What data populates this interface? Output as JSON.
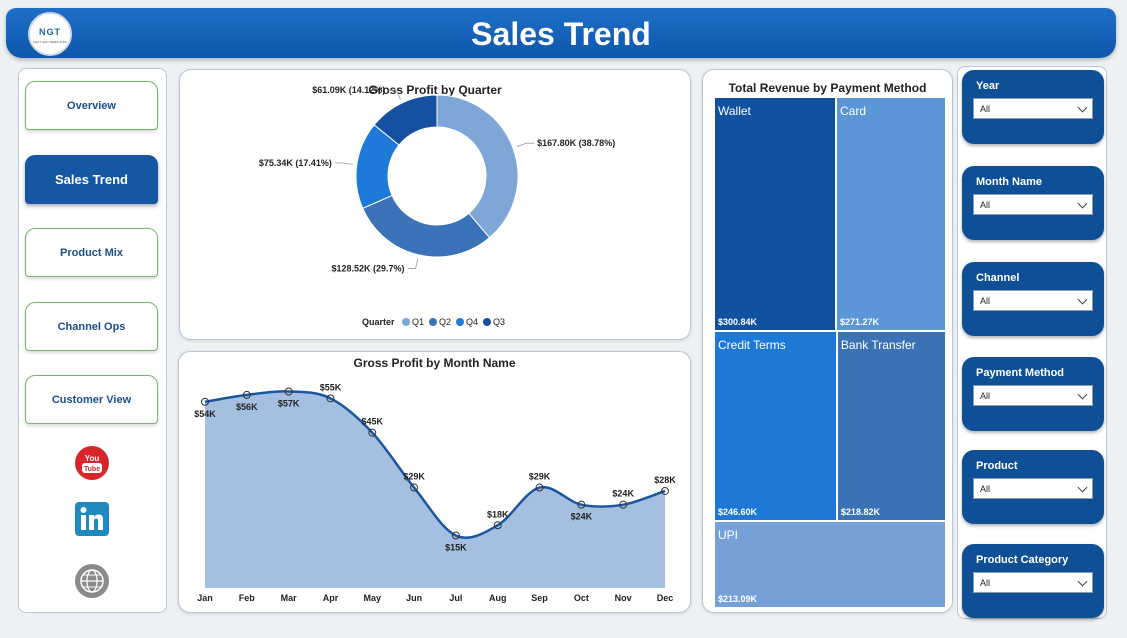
{
  "header": {
    "title": "Sales Trend",
    "logo_text": "NGT",
    "logo_sub": "NEXT GEN TEMPLATES"
  },
  "nav": {
    "items": [
      {
        "label": "Overview",
        "active": false
      },
      {
        "label": "Sales Trend",
        "active": true
      },
      {
        "label": "Product Mix",
        "active": false
      },
      {
        "label": "Channel Ops",
        "active": false
      },
      {
        "label": "Customer View",
        "active": false
      }
    ],
    "social": [
      "youtube-icon",
      "linkedin-icon",
      "globe-icon"
    ]
  },
  "colors": {
    "accent": "#1657a4",
    "q1": "#7ea6d6",
    "q2": "#3a73b7",
    "q3": "#1650a0",
    "q4": "#1e7ad8"
  },
  "donut": {
    "title": "Gross Profit by Quarter",
    "legend_title": "Quarter",
    "legend": [
      "Q1",
      "Q2",
      "Q4",
      "Q3"
    ]
  },
  "area": {
    "title": "Gross Profit by Month Name"
  },
  "treemap": {
    "title": "Total Revenue by Payment Method"
  },
  "filters": [
    {
      "label": "Year",
      "value": "All"
    },
    {
      "label": "Month Name",
      "value": "All"
    },
    {
      "label": "Channel",
      "value": "All"
    },
    {
      "label": "Payment Method",
      "value": "All"
    },
    {
      "label": "Product",
      "value": "All"
    },
    {
      "label": "Product Category",
      "value": "All"
    }
  ],
  "chart_data": [
    {
      "type": "pie",
      "title": "Gross Profit by Quarter",
      "legend_title": "Quarter",
      "slices": [
        {
          "name": "Q1",
          "value": 167.8,
          "label": "$167.80K (38.78%)"
        },
        {
          "name": "Q2",
          "value": 128.52,
          "label": "$128.52K (29.7%)"
        },
        {
          "name": "Q4",
          "value": 75.34,
          "label": "$75.34K (17.41%)"
        },
        {
          "name": "Q3",
          "value": 61.09,
          "label": "$61.09K (14.12%)"
        }
      ],
      "unit": "K"
    },
    {
      "type": "area",
      "title": "Gross Profit by Month Name",
      "categories": [
        "Jan",
        "Feb",
        "Mar",
        "Apr",
        "May",
        "Jun",
        "Jul",
        "Aug",
        "Sep",
        "Oct",
        "Nov",
        "Dec"
      ],
      "values": [
        54,
        56,
        57,
        55,
        45,
        29,
        15,
        18,
        29,
        24,
        24,
        28
      ],
      "labels": [
        "$54K",
        "$56K",
        "$57K",
        "$55K",
        "$45K",
        "$29K",
        "$15K",
        "$18K",
        "$29K",
        "$24K",
        "$24K",
        "$28K"
      ],
      "ylim": [
        0,
        60
      ]
    },
    {
      "type": "treemap",
      "title": "Total Revenue by Payment Method",
      "items": [
        {
          "name": "Wallet",
          "value": 300.84,
          "label": "$300.84K"
        },
        {
          "name": "Card",
          "value": 271.27,
          "label": "$271.27K"
        },
        {
          "name": "Credit Terms",
          "value": 246.6,
          "label": "$246.60K"
        },
        {
          "name": "Bank Transfer",
          "value": 218.82,
          "label": "$218.82K"
        },
        {
          "name": "UPI",
          "value": 213.09,
          "label": "$213.09K"
        }
      ]
    }
  ]
}
